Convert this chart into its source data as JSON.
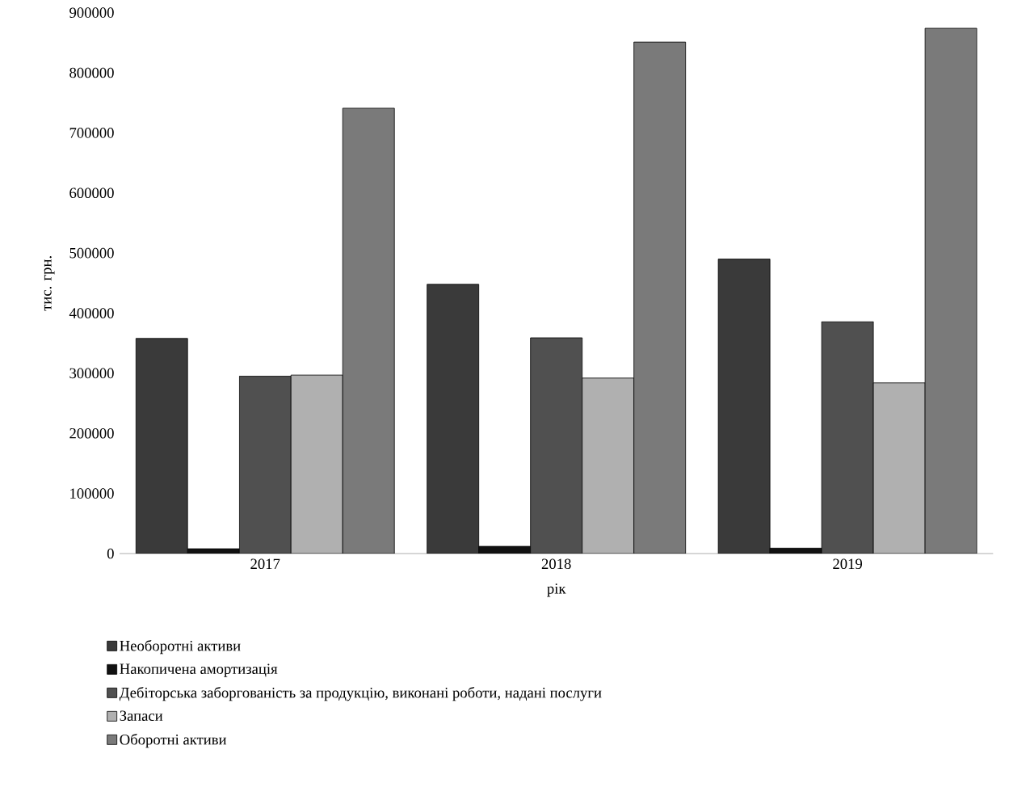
{
  "chart_data": {
    "type": "bar",
    "xlabel": "рік",
    "ylabel": "тис. грн.",
    "categories": [
      "2017",
      "2018",
      "2019"
    ],
    "series": [
      {
        "name": "Необоротні активи",
        "color": "#3a3a3a",
        "values": [
          358000,
          448000,
          490000
        ]
      },
      {
        "name": "Накопичена амортизація",
        "color": "#111111",
        "values": [
          8000,
          12000,
          9000
        ]
      },
      {
        "name": "Дебіторська заборгованість за продукцію, виконані роботи, надані  послуги",
        "color": "#505050",
        "values": [
          295000,
          359000,
          386000
        ]
      },
      {
        "name": "Запаси",
        "color": "#b0b0b0",
        "values": [
          297000,
          292000,
          284000
        ]
      },
      {
        "name": "Оборотні активи",
        "color": "#7a7a7a",
        "values": [
          741000,
          851000,
          874000
        ]
      }
    ],
    "ylim": [
      0,
      900000
    ],
    "yticks": [
      0,
      100000,
      200000,
      300000,
      400000,
      500000,
      600000,
      700000,
      800000,
      900000
    ],
    "grid": false,
    "legend": "bottom"
  }
}
